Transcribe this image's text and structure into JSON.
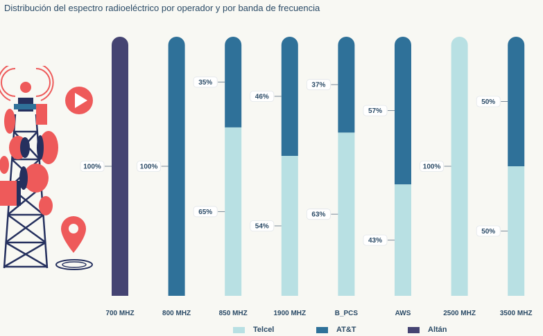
{
  "title": "Distribución del espectro radioeléctrico por operador y por banda de frecuencia",
  "colors": {
    "Telcel": "#b8e0e3",
    "AT&T": "#2f7199",
    "Altán": "#454472",
    "label_text": "#2a4a66",
    "tower_red": "#ee5a5a",
    "tower_navy": "#25305e"
  },
  "chart_data": {
    "type": "bar",
    "stacked": true,
    "categories": [
      "700 MHZ",
      "800 MHZ",
      "850 MHZ",
      "1900 MHZ",
      "B_PCS",
      "AWS",
      "2500 MHZ",
      "3500 MHZ"
    ],
    "series": [
      {
        "name": "Telcel",
        "values": [
          0,
          0,
          65,
          54,
          63,
          43,
          100,
          50
        ]
      },
      {
        "name": "AT&T",
        "values": [
          0,
          100,
          35,
          46,
          37,
          57,
          0,
          50
        ]
      },
      {
        "name": "Altán",
        "values": [
          100,
          0,
          0,
          0,
          0,
          0,
          0,
          0
        ]
      }
    ],
    "labels": [
      {
        "category": "700 MHZ",
        "series": "Altán",
        "text": "100%"
      },
      {
        "category": "800 MHZ",
        "series": "AT&T",
        "text": "100%"
      },
      {
        "category": "850 MHZ",
        "series": "AT&T",
        "text": "35%"
      },
      {
        "category": "850 MHZ",
        "series": "Telcel",
        "text": "65%"
      },
      {
        "category": "1900 MHZ",
        "series": "AT&T",
        "text": "46%"
      },
      {
        "category": "1900 MHZ",
        "series": "Telcel",
        "text": "54%"
      },
      {
        "category": "B_PCS",
        "series": "AT&T",
        "text": "37%"
      },
      {
        "category": "B_PCS",
        "series": "Telcel",
        "text": "63%"
      },
      {
        "category": "AWS",
        "series": "AT&T",
        "text": "57%"
      },
      {
        "category": "AWS",
        "series": "Telcel",
        "text": "43%"
      },
      {
        "category": "2500 MHZ",
        "series": "Telcel",
        "text": "100%"
      },
      {
        "category": "3500 MHZ",
        "series": "AT&T",
        "text": "50%"
      },
      {
        "category": "3500 MHZ",
        "series": "Telcel",
        "text": "50%"
      }
    ],
    "ylim": [
      0,
      100
    ],
    "grid": false,
    "legend_position": "bottom"
  },
  "legend": [
    {
      "name": "Telcel",
      "label": "Telcel"
    },
    {
      "name": "AT&T",
      "label": "AT&T"
    },
    {
      "name": "Altán",
      "label": "Altán"
    }
  ]
}
